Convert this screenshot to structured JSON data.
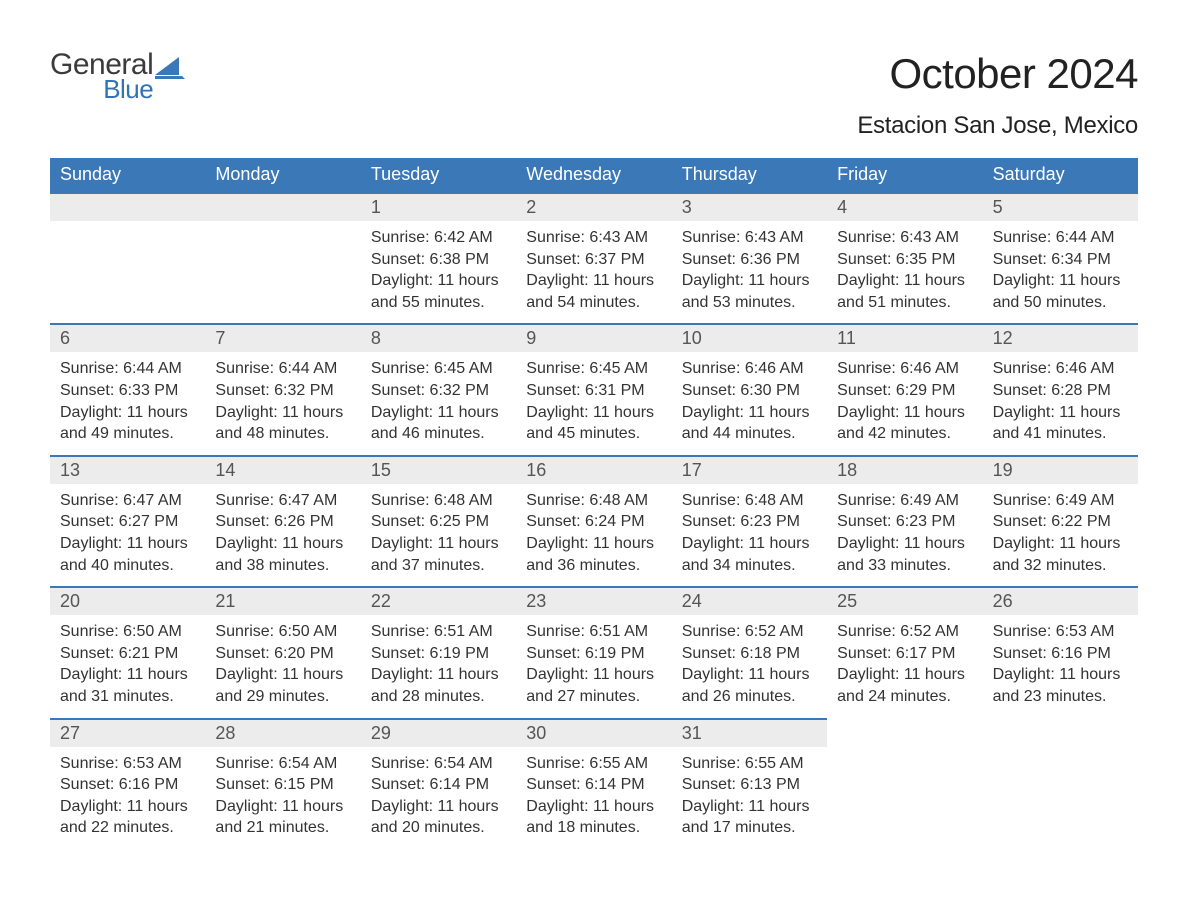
{
  "logo": {
    "general": "General",
    "blue": "Blue",
    "sail_color": "#3b78b8"
  },
  "header": {
    "month_title": "October 2024",
    "location": "Estacion San Jose, Mexico"
  },
  "colors": {
    "header_bg": "#3b78b8",
    "header_text": "#ffffff",
    "daynum_bg": "#ececec",
    "daynum_border": "#3b78b8",
    "body_text": "#333333",
    "logo_blue": "#3273b6",
    "logo_general": "#3b3b3b"
  },
  "weekdays": [
    "Sunday",
    "Monday",
    "Tuesday",
    "Wednesday",
    "Thursday",
    "Friday",
    "Saturday"
  ],
  "leading_blanks": 2,
  "days": [
    {
      "n": 1,
      "sunrise": "6:42 AM",
      "sunset": "6:38 PM",
      "daylight": "11 hours and 55 minutes."
    },
    {
      "n": 2,
      "sunrise": "6:43 AM",
      "sunset": "6:37 PM",
      "daylight": "11 hours and 54 minutes."
    },
    {
      "n": 3,
      "sunrise": "6:43 AM",
      "sunset": "6:36 PM",
      "daylight": "11 hours and 53 minutes."
    },
    {
      "n": 4,
      "sunrise": "6:43 AM",
      "sunset": "6:35 PM",
      "daylight": "11 hours and 51 minutes."
    },
    {
      "n": 5,
      "sunrise": "6:44 AM",
      "sunset": "6:34 PM",
      "daylight": "11 hours and 50 minutes."
    },
    {
      "n": 6,
      "sunrise": "6:44 AM",
      "sunset": "6:33 PM",
      "daylight": "11 hours and 49 minutes."
    },
    {
      "n": 7,
      "sunrise": "6:44 AM",
      "sunset": "6:32 PM",
      "daylight": "11 hours and 48 minutes."
    },
    {
      "n": 8,
      "sunrise": "6:45 AM",
      "sunset": "6:32 PM",
      "daylight": "11 hours and 46 minutes."
    },
    {
      "n": 9,
      "sunrise": "6:45 AM",
      "sunset": "6:31 PM",
      "daylight": "11 hours and 45 minutes."
    },
    {
      "n": 10,
      "sunrise": "6:46 AM",
      "sunset": "6:30 PM",
      "daylight": "11 hours and 44 minutes."
    },
    {
      "n": 11,
      "sunrise": "6:46 AM",
      "sunset": "6:29 PM",
      "daylight": "11 hours and 42 minutes."
    },
    {
      "n": 12,
      "sunrise": "6:46 AM",
      "sunset": "6:28 PM",
      "daylight": "11 hours and 41 minutes."
    },
    {
      "n": 13,
      "sunrise": "6:47 AM",
      "sunset": "6:27 PM",
      "daylight": "11 hours and 40 minutes."
    },
    {
      "n": 14,
      "sunrise": "6:47 AM",
      "sunset": "6:26 PM",
      "daylight": "11 hours and 38 minutes."
    },
    {
      "n": 15,
      "sunrise": "6:48 AM",
      "sunset": "6:25 PM",
      "daylight": "11 hours and 37 minutes."
    },
    {
      "n": 16,
      "sunrise": "6:48 AM",
      "sunset": "6:24 PM",
      "daylight": "11 hours and 36 minutes."
    },
    {
      "n": 17,
      "sunrise": "6:48 AM",
      "sunset": "6:23 PM",
      "daylight": "11 hours and 34 minutes."
    },
    {
      "n": 18,
      "sunrise": "6:49 AM",
      "sunset": "6:23 PM",
      "daylight": "11 hours and 33 minutes."
    },
    {
      "n": 19,
      "sunrise": "6:49 AM",
      "sunset": "6:22 PM",
      "daylight": "11 hours and 32 minutes."
    },
    {
      "n": 20,
      "sunrise": "6:50 AM",
      "sunset": "6:21 PM",
      "daylight": "11 hours and 31 minutes."
    },
    {
      "n": 21,
      "sunrise": "6:50 AM",
      "sunset": "6:20 PM",
      "daylight": "11 hours and 29 minutes."
    },
    {
      "n": 22,
      "sunrise": "6:51 AM",
      "sunset": "6:19 PM",
      "daylight": "11 hours and 28 minutes."
    },
    {
      "n": 23,
      "sunrise": "6:51 AM",
      "sunset": "6:19 PM",
      "daylight": "11 hours and 27 minutes."
    },
    {
      "n": 24,
      "sunrise": "6:52 AM",
      "sunset": "6:18 PM",
      "daylight": "11 hours and 26 minutes."
    },
    {
      "n": 25,
      "sunrise": "6:52 AM",
      "sunset": "6:17 PM",
      "daylight": "11 hours and 24 minutes."
    },
    {
      "n": 26,
      "sunrise": "6:53 AM",
      "sunset": "6:16 PM",
      "daylight": "11 hours and 23 minutes."
    },
    {
      "n": 27,
      "sunrise": "6:53 AM",
      "sunset": "6:16 PM",
      "daylight": "11 hours and 22 minutes."
    },
    {
      "n": 28,
      "sunrise": "6:54 AM",
      "sunset": "6:15 PM",
      "daylight": "11 hours and 21 minutes."
    },
    {
      "n": 29,
      "sunrise": "6:54 AM",
      "sunset": "6:14 PM",
      "daylight": "11 hours and 20 minutes."
    },
    {
      "n": 30,
      "sunrise": "6:55 AM",
      "sunset": "6:14 PM",
      "daylight": "11 hours and 18 minutes."
    },
    {
      "n": 31,
      "sunrise": "6:55 AM",
      "sunset": "6:13 PM",
      "daylight": "11 hours and 17 minutes."
    }
  ],
  "labels": {
    "sunrise": "Sunrise:",
    "sunset": "Sunset:",
    "daylight": "Daylight:"
  }
}
